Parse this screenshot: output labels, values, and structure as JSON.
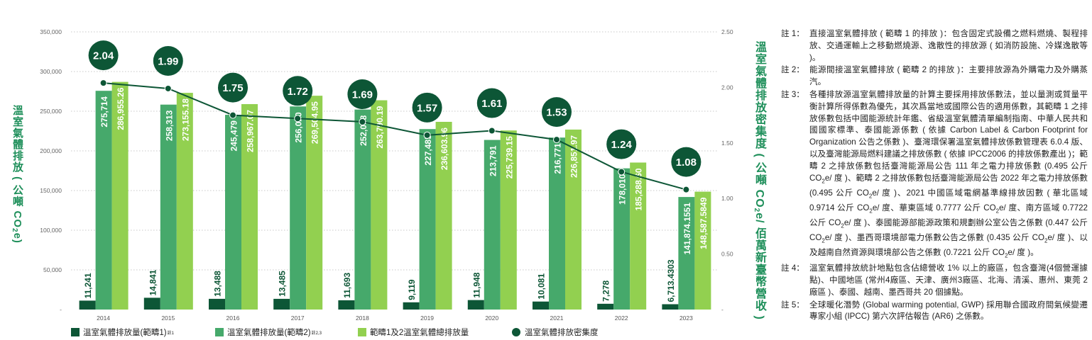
{
  "chart_data": {
    "type": "bar",
    "categories": [
      "2014",
      "2015",
      "2016",
      "2017",
      "2018",
      "2019",
      "2020",
      "2021",
      "2022",
      "2023"
    ],
    "series": [
      {
        "name": "溫室氣體排放量(範疇1)",
        "name_sup": "註1",
        "axis": "left",
        "kind": "bar",
        "color": "#0d5636",
        "values": [
          11241,
          14841,
          13488,
          13485,
          11693,
          9119,
          11948,
          10081,
          7278,
          6713.4303
        ],
        "labels": [
          "11,241",
          "14,841",
          "13,488",
          "13,485",
          "11,693",
          "9,119",
          "11,948",
          "10,081",
          "7,278",
          "6,713.4303"
        ]
      },
      {
        "name": "溫室氣體排放量(範疇2)",
        "name_sup": "註2,3",
        "axis": "left",
        "kind": "bar",
        "color": "#46a96b",
        "values": [
          275714,
          258313,
          245479,
          256020,
          252098,
          227485,
          213791,
          216771,
          178010,
          141874.1551
        ],
        "labels": [
          "275,714",
          "258,313",
          "245,479",
          "256,020",
          "252,098",
          "227,485",
          "213,791",
          "216,771",
          "178,010",
          "141,874.1551"
        ]
      },
      {
        "name": "範疇1及2溫室氣體總排放量",
        "name_sup": "",
        "axis": "left",
        "kind": "bar",
        "color": "#92d050",
        "values": [
          286955.26,
          273155.18,
          258967.07,
          269504.95,
          263790.19,
          236603.96,
          225739.15,
          226851.97,
          185288.6,
          148587.5849
        ],
        "labels": [
          "286,955.26",
          "273,155.18",
          "258,967.07",
          "269,504.95",
          "263,790.19",
          "236,603.96",
          "225,739.15",
          "226,851.97",
          "185,288.60",
          "148,587.5849"
        ]
      },
      {
        "name": "溫室氣體排放密集度",
        "name_sup": "",
        "axis": "right",
        "kind": "line",
        "color": "#0d5636",
        "values": [
          2.04,
          1.99,
          1.75,
          1.72,
          1.69,
          1.57,
          1.61,
          1.53,
          1.24,
          1.08
        ],
        "labels": [
          "2.04",
          "1.99",
          "1.75",
          "1.72",
          "1.69",
          "1.57",
          "1.61",
          "1.53",
          "1.24",
          "1.08"
        ]
      }
    ],
    "ylabel_left_parts": [
      "溫室氣體排放 ( 公噸 CO",
      "2",
      "e)"
    ],
    "ylabel_right_parts": [
      "溫室氣體排放密集度 ( 公噸 CO",
      "2",
      "e/ 佰萬新臺幣營收 )"
    ],
    "ylim_left": [
      0,
      350000
    ],
    "yticks_left": [
      0,
      50000,
      100000,
      150000,
      200000,
      250000,
      300000,
      350000
    ],
    "yticklabels_left": [
      "-",
      "50,000",
      "100,000",
      "150,000",
      "200,000",
      "250,000",
      "300,000",
      "350,000"
    ],
    "ylim_right": [
      0,
      2.5
    ],
    "yticks_right": [
      0,
      0.5,
      1,
      1.5,
      2,
      2.5
    ],
    "yticklabels_right": [
      "-",
      "0.50",
      "1.00",
      "1.50",
      "2.00",
      "2.50"
    ],
    "grid": "horizontal dotted",
    "legend_position": "bottom"
  },
  "legend": [
    {
      "label": "溫室氣體排放量(範疇1)",
      "sup": "註1",
      "color": "#0d5636",
      "shape": "square"
    },
    {
      "label": "溫室氣體排放量(範疇2)",
      "sup": "註2,3",
      "color": "#46a96b",
      "shape": "square"
    },
    {
      "label": "範疇1及2溫室氣體總排放量",
      "sup": "",
      "color": "#92d050",
      "shape": "square"
    },
    {
      "label": "溫室氣體排放密集度",
      "sup": "",
      "color": "#0d5636",
      "shape": "circle"
    }
  ],
  "notes": [
    {
      "label": "註 1：",
      "segments": [
        "直接溫室氣體排放 ( 範疇 1 的排放 )：包含固定式設備之燃料燃燒、製程排放、交通運輸上之移動燃燒源、逸散性的排放源 ( 如消防設施、冷媒逸散等 )。"
      ]
    },
    {
      "label": "註 2：",
      "segments": [
        "能源間接溫室氣體排放 ( 範疇 2 的排放 )：主要排放源為外購電力及外購蒸汽。"
      ]
    },
    {
      "label": "註 3：",
      "segments": [
        "各種排放源溫室氣體排放量的計算主要採用排放係數法，並以量測或質量平衡計算所得係數為優先，其次爲當地或國際公告的適用係數，其範疇 1 之排放係數包括中國能源統計年鑑、省級溫室氣體清單編制指南、中華人民共和國國家標準、泰國能源係數 ( 依據 Carbon Label & Carbon Footprint for Organization 公告之係數 )、臺灣環保署溫室氣體排放係數管理表 6.0.4 版、以及臺灣能源局燃料建議之排放係數 ( 依據 IPCC2006 的排放係數產出 )；範疇 2 之排放係數包括臺灣能源局公告 111 年之電力排放係數 (0.495 公斤 CO",
        "2",
        "e/ 度 )、範疇 2 之排放係數包括臺灣能源局公告 2022 年之電力排放係數 (0.495 公斤 CO",
        "2",
        "e/ 度 )、2021 中國區域電網基準線排放因數 ( 華北區域 0.9714 公斤 CO",
        "2",
        "e/ 度、華東區域 0.7777 公斤 CO",
        "2",
        "e/ 度、南方區域 0.7722 公斤 CO",
        "2",
        "e/ 度 )、泰國能源部能源政策和規劃辦公室公告之係數 (0.447 公斤 CO",
        "2",
        "e/ 度 )、墨西哥環境部電力係數公告之係數 (0.435 公斤 CO",
        "2",
        "e/ 度 )、以及越南自然資源與環境部公告之係數 (0.7221 公斤 CO",
        "2",
        "e/ 度 )。"
      ]
    },
    {
      "label": "註 4：",
      "segments": [
        "溫室氣體排放統計地點包含佔總營收 1% 以上的廠區，包含臺灣(4個營運據點)、中國地區 (常州4廠區、天津、廣州3廠區、北海、清溪、惠州、東莞 2 廠區 )、泰國、越南、墨西哥共 20 個據點。"
      ]
    },
    {
      "label": "註 5：",
      "segments": [
        "全球暖化潛勢 (Global warming potential, GWP) 採用聯合國政府間氣候變遷專家小組 (IPCC) 第六次評估報告 (AR6) 之係數。"
      ]
    }
  ]
}
